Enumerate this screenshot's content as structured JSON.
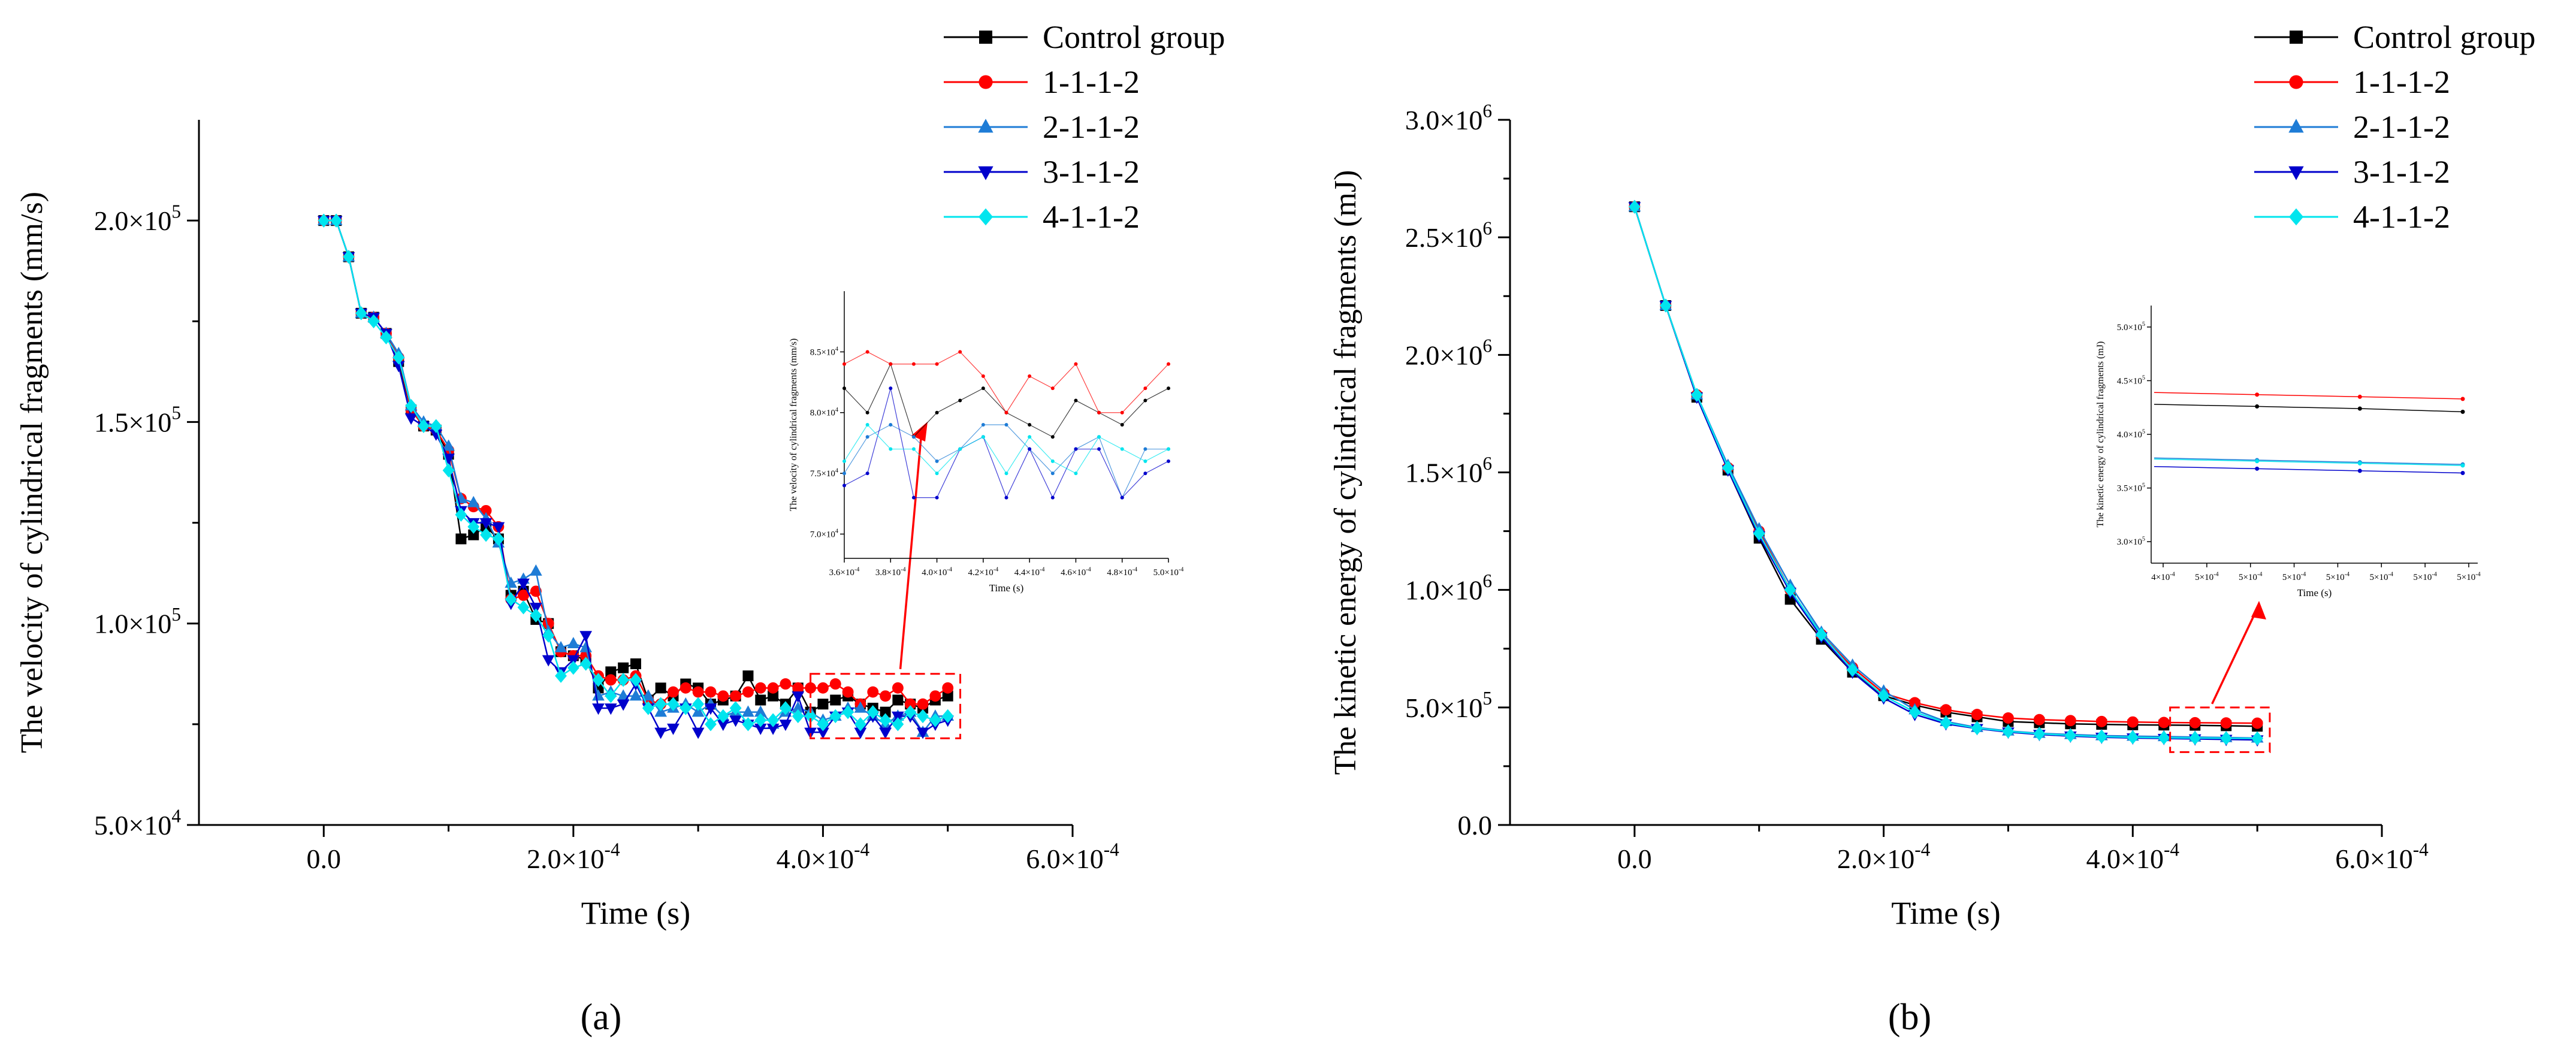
{
  "figure": {
    "panel_labels": [
      "(a)",
      "(b)"
    ]
  },
  "chart_data": [
    {
      "panel": "(a)",
      "type": "line",
      "xlabel": "Time (s)",
      "ylabel": "The velocity of cylindrical fragments (mm/s)",
      "xlim": [
        -0.0001,
        0.0006
      ],
      "ylim": [
        50000,
        225000
      ],
      "x_ticks": [
        {
          "v": 0,
          "label": "0.0"
        },
        {
          "v": 0.0002,
          "label": "2.0×10^-4"
        },
        {
          "v": 0.0004,
          "label": "4.0×10^-4"
        },
        {
          "v": 0.0006,
          "label": "6.0×10^-4"
        }
      ],
      "y_ticks": [
        {
          "v": 50000,
          "label": "5.0×10^4"
        },
        {
          "v": 100000,
          "label": "1.0×10^5"
        },
        {
          "v": 150000,
          "label": "1.5×10^5"
        },
        {
          "v": 200000,
          "label": "2.0×10^5"
        }
      ],
      "legend_position": "top-right",
      "x": [
        0,
        1e-05,
        2e-05,
        3e-05,
        4e-05,
        5e-05,
        6e-05,
        7e-05,
        8e-05,
        9e-05,
        0.0001,
        0.00011,
        0.00012,
        0.00013,
        0.00014,
        0.00015,
        0.00016,
        0.00017,
        0.00018,
        0.00019,
        0.0002,
        0.00021,
        0.00022,
        0.00023,
        0.00024,
        0.00025,
        0.00026,
        0.00027,
        0.00028,
        0.00029,
        0.0003,
        0.00031,
        0.00032,
        0.00033,
        0.00034,
        0.00035,
        0.00036,
        0.00037,
        0.00038,
        0.00039,
        0.0004,
        0.00041,
        0.00042,
        0.00043,
        0.00044,
        0.00045,
        0.00046,
        0.00047,
        0.00048,
        0.00049,
        0.0005
      ],
      "series": [
        {
          "name": "Control group",
          "color": "#000000",
          "marker": "square",
          "values": [
            200000,
            200000,
            191000,
            177000,
            176000,
            172000,
            165000,
            153000,
            149000,
            148000,
            142000,
            121000,
            122000,
            124000,
            121000,
            107000,
            108000,
            101000,
            100000,
            93000,
            92000,
            91000,
            84000,
            88000,
            89000,
            90000,
            81000,
            84000,
            82000,
            85000,
            84000,
            80000,
            81000,
            82000,
            87000,
            81000,
            82000,
            80000,
            84000,
            78000,
            80000,
            81000,
            82000,
            80000,
            79000,
            78000,
            81000,
            80000,
            79000,
            81000,
            82000
          ]
        },
        {
          "name": "1-1-1-2",
          "color": "#ff0000",
          "marker": "circle",
          "values": [
            200000,
            200000,
            191000,
            177000,
            176000,
            172000,
            166000,
            153000,
            149000,
            148000,
            143000,
            131000,
            129000,
            128000,
            124000,
            106000,
            107000,
            108000,
            100000,
            93000,
            92000,
            92000,
            87000,
            86000,
            86000,
            87000,
            81000,
            80000,
            83000,
            84000,
            83000,
            83000,
            82000,
            82000,
            83000,
            84000,
            84000,
            85000,
            84000,
            84000,
            84000,
            85000,
            83000,
            80000,
            83000,
            82000,
            84000,
            80000,
            80000,
            82000,
            84000
          ]
        },
        {
          "name": "2-1-1-2",
          "color": "#1e7cd6",
          "marker": "triangle-up",
          "values": [
            200000,
            200000,
            191000,
            177000,
            176000,
            172000,
            167000,
            154000,
            150000,
            149000,
            144000,
            131000,
            130000,
            126000,
            120000,
            110000,
            111000,
            113000,
            98000,
            94000,
            95000,
            94000,
            82000,
            83000,
            82000,
            82000,
            82000,
            78000,
            79000,
            80000,
            78000,
            80000,
            77000,
            78000,
            78000,
            78000,
            75000,
            78000,
            79000,
            78000,
            76000,
            77000,
            79000,
            79000,
            77000,
            75000,
            77000,
            78000,
            73000,
            77000,
            77000
          ]
        },
        {
          "name": "3-1-1-2",
          "color": "#0000cc",
          "marker": "triangle-down",
          "values": [
            200000,
            200000,
            191000,
            177000,
            176000,
            172000,
            164000,
            151000,
            149000,
            147000,
            141000,
            128000,
            125000,
            125000,
            124000,
            105000,
            110000,
            104000,
            91000,
            88000,
            91000,
            97000,
            79000,
            79000,
            80000,
            85000,
            79000,
            73000,
            74000,
            79000,
            73000,
            79000,
            75000,
            76000,
            75000,
            74000,
            74000,
            75000,
            82000,
            73000,
            73000,
            77000,
            78000,
            73000,
            77000,
            73000,
            77000,
            77000,
            73000,
            75000,
            76000
          ]
        },
        {
          "name": "4-1-1-2",
          "color": "#00e5ee",
          "marker": "diamond",
          "values": [
            200000,
            200000,
            191000,
            177000,
            175000,
            171000,
            166000,
            154000,
            149000,
            149000,
            138000,
            127000,
            124000,
            122000,
            121000,
            106000,
            104000,
            102000,
            97000,
            87000,
            89000,
            90000,
            86000,
            82000,
            86000,
            86000,
            79000,
            80000,
            80000,
            79000,
            80000,
            75000,
            77000,
            79000,
            75000,
            76000,
            76000,
            79000,
            77000,
            77000,
            75000,
            77000,
            78000,
            75000,
            78000,
            76000,
            75000,
            78000,
            77000,
            76000,
            77000
          ]
        }
      ],
      "inset": {
        "xlabel": "Time (s)",
        "ylabel": "The velocity of cylindrical fragments (mm/s)",
        "xlim": [
          0.00036,
          0.0005
        ],
        "ylim": [
          68000,
          90000
        ],
        "x_ticks": [
          {
            "v": 0.00036,
            "label": "3.6×10^-4"
          },
          {
            "v": 0.00038,
            "label": "3.8×10^-4"
          },
          {
            "v": 0.0004,
            "label": "4.0×10^-4"
          },
          {
            "v": 0.00042,
            "label": "4.2×10^-4"
          },
          {
            "v": 0.00044,
            "label": "4.4×10^-4"
          },
          {
            "v": 0.00046,
            "label": "4.6×10^-4"
          },
          {
            "v": 0.00048,
            "label": "4.8×10^-4"
          },
          {
            "v": 0.0005,
            "label": "5.0×10^-4"
          }
        ],
        "y_ticks": [
          {
            "v": 70000,
            "label": "7.0×10^4"
          },
          {
            "v": 75000,
            "label": "7.5×10^4"
          },
          {
            "v": 80000,
            "label": "8.0×10^4"
          },
          {
            "v": 85000,
            "label": "8.5×10^4"
          }
        ],
        "source_x_range": [
          0.00039,
          0.00051
        ],
        "source_y_range": [
          71500,
          87500
        ]
      }
    },
    {
      "panel": "(b)",
      "type": "line",
      "xlabel": "Time (s)",
      "ylabel": "The kinetic energy of cylindrical fragments (mJ)",
      "xlim": [
        -0.0001,
        0.0006
      ],
      "ylim": [
        0,
        3000000
      ],
      "x_ticks": [
        {
          "v": 0,
          "label": "0.0"
        },
        {
          "v": 0.0002,
          "label": "2.0×10^-4"
        },
        {
          "v": 0.0004,
          "label": "4.0×10^-4"
        },
        {
          "v": 0.0006,
          "label": "6.0×10^-4"
        }
      ],
      "y_ticks": [
        {
          "v": 0,
          "label": "0.0"
        },
        {
          "v": 500000,
          "label": "5.0×10^5"
        },
        {
          "v": 1000000,
          "label": "1.0×10^6"
        },
        {
          "v": 1500000,
          "label": "1.5×10^6"
        },
        {
          "v": 2000000,
          "label": "2.0×10^6"
        },
        {
          "v": 2500000,
          "label": "2.5×10^6"
        },
        {
          "v": 3000000,
          "label": "3.0×10^6"
        }
      ],
      "legend_position": "top-right",
      "x": [
        0,
        2.5e-05,
        5e-05,
        7.5e-05,
        0.0001,
        0.000125,
        0.00015,
        0.000175,
        0.0002,
        0.000225,
        0.00025,
        0.000275,
        0.0003,
        0.000325,
        0.00035,
        0.000375,
        0.0004,
        0.000425,
        0.00045,
        0.000475,
        0.0005
      ],
      "series": [
        {
          "name": "Control group",
          "color": "#000000",
          "marker": "square",
          "values": [
            2630000,
            2210000,
            1820000,
            1510000,
            1220000,
            960000,
            790000,
            650000,
            550000,
            510000,
            480000,
            460000,
            440000,
            435000,
            430000,
            428000,
            426000,
            425000,
            424000,
            422000,
            420000
          ]
        },
        {
          "name": "1-1-1-2",
          "color": "#ff0000",
          "marker": "circle",
          "values": [
            2630000,
            2210000,
            1830000,
            1520000,
            1250000,
            1000000,
            810000,
            670000,
            560000,
            520000,
            490000,
            470000,
            455000,
            448000,
            444000,
            440000,
            438000,
            436000,
            435000,
            434000,
            433000
          ]
        },
        {
          "name": "2-1-1-2",
          "color": "#1e7cd6",
          "marker": "triangle-up",
          "values": [
            2630000,
            2210000,
            1830000,
            1530000,
            1260000,
            1020000,
            820000,
            680000,
            570000,
            490000,
            440000,
            415000,
            400000,
            390000,
            385000,
            380000,
            378000,
            376000,
            374000,
            372000,
            370000
          ]
        },
        {
          "name": "3-1-1-2",
          "color": "#0000cc",
          "marker": "triangle-down",
          "values": [
            2630000,
            2210000,
            1820000,
            1510000,
            1230000,
            990000,
            800000,
            650000,
            540000,
            470000,
            430000,
            410000,
            395000,
            385000,
            378000,
            373000,
            370000,
            368000,
            366000,
            364000,
            362000
          ]
        },
        {
          "name": "4-1-1-2",
          "color": "#00e5ee",
          "marker": "diamond",
          "values": [
            2630000,
            2210000,
            1830000,
            1520000,
            1240000,
            1000000,
            810000,
            660000,
            550000,
            480000,
            435000,
            412000,
            398000,
            388000,
            381000,
            376000,
            373000,
            371000,
            370000,
            369000,
            368000
          ]
        }
      ],
      "inset": {
        "xlabel": "Time (s)",
        "ylabel": "The kinetic energy of cylindrical fragments (mJ)",
        "ylim": [
          280000,
          520000
        ],
        "x_tick_labels": [
          "4×10^-4",
          "5×10^-4",
          "5×10^-4",
          "5×10^-4",
          "5×10^-4",
          "5×10^-4",
          "5×10^-4",
          "5×10^-4"
        ],
        "y_ticks": [
          {
            "v": 300000,
            "label": "3.0×10^5"
          },
          {
            "v": 350000,
            "label": "3.5×10^5"
          },
          {
            "v": 400000,
            "label": "4.0×10^5"
          },
          {
            "v": 450000,
            "label": "4.5×10^5"
          },
          {
            "v": 500000,
            "label": "5.0×10^5"
          }
        ],
        "series_values": [
          {
            "name": "Control group",
            "values": [
              428000,
              426000,
              424000,
              421000
            ]
          },
          {
            "name": "1-1-1-2",
            "values": [
              439000,
              437000,
              435000,
              433000
            ]
          },
          {
            "name": "2-1-1-2",
            "values": [
              378000,
              376000,
              374000,
              372000
            ]
          },
          {
            "name": "3-1-1-2",
            "values": [
              370000,
              368000,
              366000,
              364000
            ]
          },
          {
            "name": "4-1-1-2",
            "values": [
              377000,
              375000,
              373000,
              371000
            ]
          }
        ],
        "source_x_range": [
          0.00043,
          0.00051
        ],
        "source_y_range": [
          310000,
          500000
        ]
      }
    }
  ]
}
